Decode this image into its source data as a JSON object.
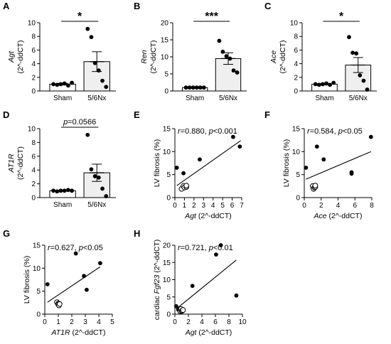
{
  "chart_data": [
    {
      "panel": "A",
      "type": "bar",
      "categories": [
        "Sham",
        "5/6Nx"
      ],
      "values": [
        1.0,
        4.3
      ],
      "errors": [
        0.12,
        1.45
      ],
      "points": [
        [
          1.0,
          0.9,
          1.0,
          1.1,
          0.8,
          1.2
        ],
        [
          9.1,
          7.9,
          4.1,
          3.0,
          1.5,
          0.6
        ]
      ],
      "ylabel_gene": "Agt",
      "ylabel_unit": "(2^-ddCT)",
      "ylim": [
        0,
        10
      ],
      "yticks": [
        0,
        2,
        4,
        6,
        8,
        10
      ],
      "significance": "*"
    },
    {
      "panel": "B",
      "type": "bar",
      "categories": [
        "Sham",
        "5/6Nx"
      ],
      "values": [
        1.0,
        9.5
      ],
      "errors": [
        0.05,
        1.7
      ],
      "points": [
        [
          1.0,
          1.0,
          1.0,
          1.0,
          1.0,
          1.0
        ],
        [
          14.7,
          11.5,
          10.2,
          9.5,
          6.0,
          5.4
        ]
      ],
      "ylabel_gene": "Ren",
      "ylabel_unit": "(2^-ddCT)",
      "ylim": [
        0,
        20
      ],
      "yticks": [
        0,
        5,
        10,
        15,
        20
      ],
      "significance": "***"
    },
    {
      "panel": "C",
      "type": "bar",
      "categories": [
        "Sham",
        "5/6Nx"
      ],
      "values": [
        1.0,
        3.8
      ],
      "errors": [
        0.1,
        1.1
      ],
      "points": [
        [
          1.0,
          0.9,
          1.0,
          1.1,
          0.9,
          1.2
        ],
        [
          7.9,
          5.6,
          5.5,
          2.3,
          1.5,
          0.2
        ]
      ],
      "ylabel_gene": "Ace",
      "ylabel_unit": "(2^-ddCT)",
      "ylim": [
        0,
        10
      ],
      "yticks": [
        0,
        2,
        4,
        6,
        8,
        10
      ],
      "significance": "*"
    },
    {
      "panel": "D",
      "type": "bar",
      "categories": [
        "Sham",
        "5/6Nx"
      ],
      "values": [
        1.0,
        3.6
      ],
      "errors": [
        0.08,
        1.25
      ],
      "points": [
        [
          1.0,
          0.9,
          1.0,
          1.0,
          1.1,
          1.0
        ],
        [
          9.1,
          4.1,
          3.1,
          2.9,
          1.3,
          0.2
        ]
      ],
      "ylabel_gene": "AT1R",
      "ylabel_unit": "(2^-ddCT)",
      "ylim": [
        0,
        10
      ],
      "yticks": [
        0,
        2,
        4,
        6,
        8,
        10
      ],
      "significance_p": "p",
      "significance_rest": "=0.0566"
    },
    {
      "panel": "E",
      "type": "scatter",
      "xlabel_gene": "Agt",
      "xlabel_unit": "(2^-ddCT)",
      "ylabel": "LV fibrosis (%)",
      "xlim": [
        0,
        7
      ],
      "xticks": [
        0,
        1,
        2,
        3,
        4,
        5,
        6,
        7
      ],
      "ylim": [
        0,
        15
      ],
      "yticks": [
        0,
        5,
        10,
        15
      ],
      "filled": [
        [
          0.2,
          6.5
        ],
        [
          0.9,
          5.3
        ],
        [
          2.6,
          8.3
        ],
        [
          6.1,
          13.2
        ],
        [
          6.8,
          11.1
        ]
      ],
      "open": [
        [
          0.7,
          1.9
        ],
        [
          0.9,
          2.5
        ],
        [
          1.0,
          2.2
        ],
        [
          1.2,
          2.3
        ],
        [
          1.2,
          2.6
        ]
      ],
      "fit": [
        [
          0.2,
          2.6
        ],
        [
          6.9,
          12.4
        ]
      ],
      "stat_r": "r",
      "stat_r_val": "=0.880, ",
      "stat_p": "p",
      "stat_p_val": "<0.001"
    },
    {
      "panel": "F",
      "type": "scatter",
      "xlabel_gene": "Ace",
      "xlabel_unit": "(2^-ddCT)",
      "ylabel": "LV fibrosis (%)",
      "xlim": [
        0,
        8
      ],
      "xticks": [
        0,
        2,
        4,
        6,
        8
      ],
      "ylim": [
        0,
        15
      ],
      "yticks": [
        0,
        5,
        10,
        15
      ],
      "filled": [
        [
          0.2,
          6.5
        ],
        [
          1.5,
          11.1
        ],
        [
          2.3,
          8.3
        ],
        [
          5.6,
          5.5
        ],
        [
          5.6,
          5.2
        ],
        [
          7.9,
          13.2
        ]
      ],
      "open": [
        [
          1.0,
          2.5
        ],
        [
          1.1,
          1.9
        ],
        [
          1.2,
          2.2
        ],
        [
          1.3,
          2.3
        ],
        [
          1.3,
          2.6
        ]
      ],
      "fit": [
        [
          0.2,
          4.0
        ],
        [
          7.9,
          10.0
        ]
      ],
      "stat_r": "r",
      "stat_r_val": "=0.584, ",
      "stat_p": "p",
      "stat_p_val": "<0.05"
    },
    {
      "panel": "G",
      "type": "scatter",
      "xlabel_gene": "AT1R",
      "xlabel_unit": "(2^-ddCT)",
      "ylabel": "LV fibrosis (%)",
      "xlim": [
        0,
        5
      ],
      "xticks": [
        0,
        1,
        2,
        3,
        4,
        5
      ],
      "ylim": [
        0,
        15
      ],
      "yticks": [
        0,
        5,
        10,
        15
      ],
      "filled": [
        [
          0.2,
          6.5
        ],
        [
          2.3,
          13.2
        ],
        [
          2.9,
          8.3
        ],
        [
          3.1,
          5.3
        ],
        [
          4.1,
          11.1
        ]
      ],
      "open": [
        [
          0.9,
          2.6
        ],
        [
          1.0,
          2.3
        ],
        [
          1.0,
          2.1
        ],
        [
          1.05,
          1.9
        ],
        [
          1.1,
          2.2
        ]
      ],
      "fit": [
        [
          0.2,
          2.6
        ],
        [
          4.1,
          10.3
        ]
      ],
      "stat_r": "r",
      "stat_r_val": "=0.627, ",
      "stat_p": "p",
      "stat_p_val": "<0.05"
    },
    {
      "panel": "H",
      "type": "scatter",
      "xlabel_gene": "Agt",
      "xlabel_unit": "(2^-ddCT)",
      "ylabel_prefix": "cardiac ",
      "ylabel_gene": "Fgf23",
      "ylabel_unit": " (2^-ddCT)",
      "xlim": [
        0,
        10
      ],
      "xticks": [
        0,
        2,
        4,
        6,
        8,
        10
      ],
      "ylim": [
        0,
        20
      ],
      "yticks": [
        0,
        5,
        10,
        15,
        20
      ],
      "filled": [
        [
          0.2,
          2.3
        ],
        [
          0.5,
          1.3
        ],
        [
          2.6,
          8.2
        ],
        [
          6.1,
          17.3
        ],
        [
          6.8,
          20.0
        ],
        [
          9.1,
          5.4
        ]
      ],
      "open": [
        [
          0.8,
          0.8
        ],
        [
          0.9,
          1.5
        ],
        [
          1.0,
          0.9
        ],
        [
          1.1,
          1.0
        ],
        [
          1.2,
          1.2
        ]
      ],
      "fit": [
        [
          0.2,
          1.5
        ],
        [
          9.1,
          15.7
        ]
      ],
      "stat_r": "r",
      "stat_r_val": "=0.721, ",
      "stat_p": "p",
      "stat_p_val": "<0.01"
    }
  ]
}
